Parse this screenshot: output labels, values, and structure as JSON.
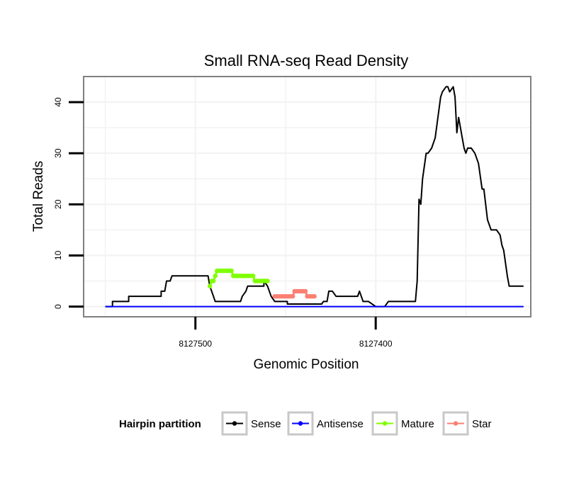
{
  "chart_data": {
    "type": "line",
    "title": "Small RNA-seq Read Density",
    "xlabel": "Genomic Position",
    "ylabel": "Total Reads",
    "xlim": [
      8127562,
      8127314
    ],
    "ylim": [
      -2,
      45
    ],
    "x_reversed": true,
    "x_ticks": [
      8127500,
      8127400
    ],
    "x_tick_labels": [
      "8127500",
      "8127400"
    ],
    "y_ticks": [
      0,
      10,
      20,
      30,
      40
    ],
    "y_tick_labels": [
      "0",
      "10",
      "20",
      "30",
      "40"
    ],
    "grid": true,
    "legend": {
      "title": "Hairpin partition",
      "position": "bottom",
      "entries": [
        {
          "name": "Sense",
          "color": "#000000"
        },
        {
          "name": "Antisense",
          "color": "#0000ff"
        },
        {
          "name": "Mature",
          "color": "#7fff00"
        },
        {
          "name": "Star",
          "color": "#fa8072"
        }
      ]
    },
    "series": [
      {
        "name": "Sense",
        "color": "#000000",
        "x": [
          8127550,
          8127546,
          8127546,
          8127537,
          8127537,
          8127519,
          8127519,
          8127517,
          8127516,
          8127514,
          8127513,
          8127511,
          8127511,
          8127493,
          8127492,
          8127490,
          8127489,
          8127475,
          8127474,
          8127472,
          8127471,
          8127462,
          8127462,
          8127460,
          8127458,
          8127456,
          8127455,
          8127449,
          8127449,
          8127430,
          8127429,
          8127427,
          8127426,
          8127424,
          8127422,
          8127410,
          8127409,
          8127407,
          8127404,
          8127400,
          8127397,
          8127395,
          8127393,
          8127378,
          8127377,
          8127376,
          8127375,
          8127374,
          8127372,
          8127371,
          8127369,
          8127367,
          8127364,
          8127363,
          8127361,
          8127360,
          8127359,
          8127357,
          8127356,
          8127355,
          8127354,
          8127352,
          8127351,
          8127350,
          8127349,
          8127347,
          8127345,
          8127343,
          8127341,
          8127340,
          8127338,
          8127336,
          8127333,
          8127331,
          8127330,
          8127329,
          8127327,
          8127326,
          8127325,
          8127323,
          8127322,
          8127320,
          8127319,
          8127318
        ],
        "y": [
          0,
          0,
          1,
          1,
          2,
          2,
          3,
          3,
          5,
          5,
          6,
          6,
          6,
          6,
          4,
          2,
          1,
          1,
          2,
          3,
          4,
          4,
          5,
          4,
          2,
          1,
          1,
          1,
          0.5,
          0.5,
          1,
          1,
          3,
          3,
          2,
          2,
          3,
          1,
          1,
          0,
          0,
          0,
          1,
          1,
          5,
          21,
          20,
          25,
          30,
          30,
          31,
          33,
          41,
          42,
          43,
          43,
          42,
          43,
          41,
          34,
          37,
          33,
          31,
          30,
          31,
          31,
          30,
          28,
          23,
          23,
          17,
          15,
          15,
          14,
          12,
          11,
          6,
          4,
          4,
          4,
          4,
          4,
          4,
          4
        ]
      },
      {
        "name": "Antisense",
        "color": "#0000ff",
        "x": [
          8127550,
          8127318
        ],
        "y": [
          0,
          0
        ]
      },
      {
        "name": "Mature",
        "color": "#7fff00",
        "x": [
          8127492,
          8127491,
          8127490,
          8127489,
          8127488,
          8127487,
          8127486,
          8127485,
          8127484,
          8127483,
          8127482,
          8127481,
          8127480,
          8127479,
          8127478,
          8127477,
          8127476,
          8127475,
          8127474,
          8127473,
          8127472,
          8127471,
          8127470,
          8127469,
          8127468,
          8127467,
          8127466,
          8127465,
          8127464,
          8127463,
          8127462,
          8127461,
          8127460
        ],
        "y": [
          4,
          5,
          5,
          6,
          7,
          7,
          7,
          7,
          7,
          7,
          7,
          7,
          7,
          6,
          6,
          6,
          6,
          6,
          6,
          6,
          6,
          6,
          6,
          6,
          6,
          5,
          5,
          5,
          5,
          5,
          5,
          5,
          5
        ]
      },
      {
        "name": "Star",
        "color": "#fa8072",
        "x": [
          8127456,
          8127455,
          8127454,
          8127453,
          8127452,
          8127451,
          8127450,
          8127449,
          8127448,
          8127447,
          8127446,
          8127445,
          8127444,
          8127443,
          8127442,
          8127441,
          8127440,
          8127439,
          8127438,
          8127437,
          8127436,
          8127435,
          8127434
        ],
        "y": [
          2,
          2,
          2,
          2,
          2,
          2,
          2,
          2,
          2,
          2,
          2,
          3,
          3,
          3,
          3,
          3,
          3,
          3,
          2,
          2,
          2,
          2,
          2
        ]
      }
    ]
  }
}
